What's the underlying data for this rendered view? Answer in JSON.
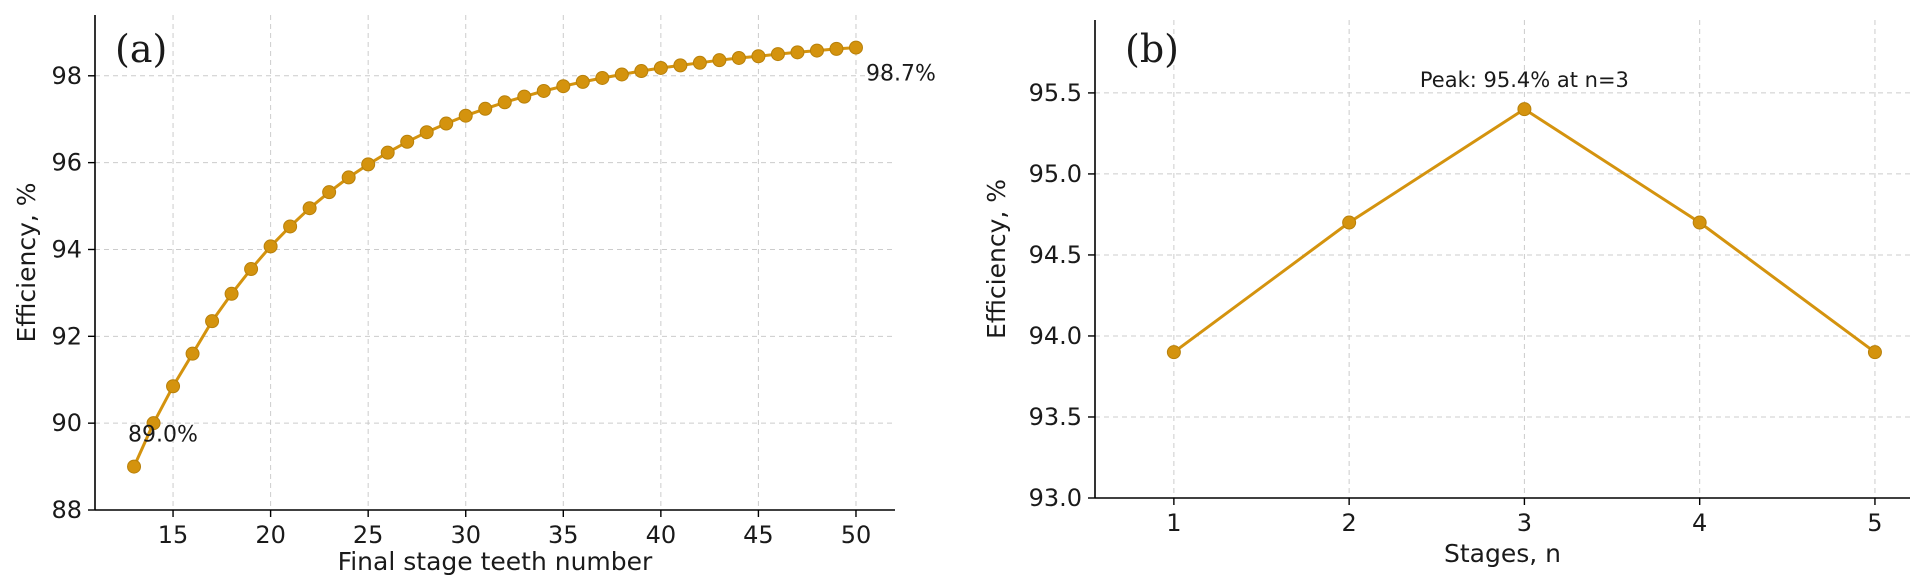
{
  "chart_data": [
    {
      "type": "line",
      "panel_label": "(a)",
      "xlabel": "Final stage teeth number",
      "ylabel": "Efficiency, %",
      "xlim": [
        11,
        52
      ],
      "ylim": [
        88,
        99.4
      ],
      "xticks": [
        15,
        20,
        25,
        30,
        35,
        40,
        45,
        50
      ],
      "yticks": [
        88,
        90,
        92,
        94,
        96,
        98
      ],
      "grid": true,
      "color": "#d4930e",
      "x": [
        13,
        14,
        15,
        16,
        17,
        18,
        19,
        20,
        21,
        22,
        23,
        24,
        25,
        26,
        27,
        28,
        29,
        30,
        31,
        32,
        33,
        34,
        35,
        36,
        37,
        38,
        39,
        40,
        41,
        42,
        43,
        44,
        45,
        46,
        47,
        48,
        49,
        50
      ],
      "values": [
        89.0,
        90.0,
        90.85,
        91.6,
        92.35,
        92.98,
        93.55,
        94.07,
        94.53,
        94.95,
        95.32,
        95.66,
        95.96,
        96.23,
        96.48,
        96.7,
        96.9,
        97.08,
        97.24,
        97.39,
        97.52,
        97.65,
        97.76,
        97.86,
        97.95,
        98.03,
        98.11,
        98.18,
        98.24,
        98.3,
        98.36,
        98.41,
        98.45,
        98.5,
        98.54,
        98.58,
        98.62,
        98.65
      ],
      "annotations": [
        {
          "text": "89.0%",
          "x": 13,
          "y": 89.0
        },
        {
          "text": "98.7%",
          "x": 50,
          "y": 98.65
        }
      ]
    },
    {
      "type": "line",
      "panel_label": "(b)",
      "xlabel": "Stages, n",
      "ylabel": "Efficiency, %",
      "xlim": [
        0.55,
        5.2
      ],
      "ylim": [
        93.0,
        95.95
      ],
      "xticks": [
        1,
        2,
        3,
        4,
        5
      ],
      "yticks": [
        93.0,
        93.5,
        94.0,
        94.5,
        95.0,
        95.5
      ],
      "ytick_labels": [
        "93.0",
        "93.5",
        "94.0",
        "94.5",
        "95.0",
        "95.5"
      ],
      "grid": true,
      "color": "#d4930e",
      "x": [
        1,
        2,
        3,
        4,
        5
      ],
      "values": [
        93.9,
        94.7,
        95.4,
        94.7,
        93.9
      ],
      "annotations": [
        {
          "text": "Peak: 95.4% at n=3",
          "x": 3,
          "y": 95.4
        }
      ]
    }
  ]
}
